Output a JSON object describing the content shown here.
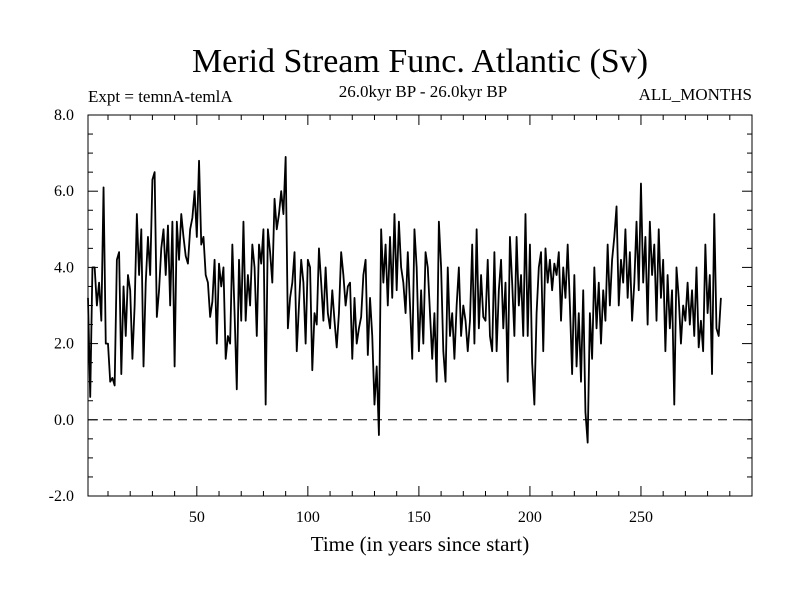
{
  "chart_data": {
    "type": "line",
    "title": "Merid Stream Func. Atlantic (Sv)",
    "subtitle_left": "Expt = temnA-temlA",
    "subtitle_center": "26.0kyr BP - 26.0kyr BP",
    "subtitle_right": "ALL_MONTHS",
    "xlabel": "Time (in years since start)",
    "ylabel": "",
    "xlim": [
      1,
      300
    ],
    "ylim": [
      -2.0,
      8.0
    ],
    "xticks": [
      50,
      100,
      150,
      200,
      250
    ],
    "xtick_labels": [
      "50",
      "100",
      "150",
      "200",
      "250"
    ],
    "yticks": [
      -2,
      0,
      2,
      4,
      6,
      8
    ],
    "ytick_labels": [
      "-2.0",
      "0.0",
      "2.0",
      "4.0",
      "6.0",
      "8.0"
    ],
    "reference_line": {
      "y": 0.0,
      "style": "dashed"
    },
    "line_color": "#000000",
    "series": [
      {
        "name": "Merid Stream Func.",
        "x_start": 1,
        "x_step": 1,
        "values": [
          3.2,
          0.6,
          4.0,
          4.0,
          3.0,
          3.6,
          2.6,
          6.1,
          2.0,
          2.0,
          1.0,
          1.1,
          0.9,
          4.2,
          4.4,
          1.2,
          3.5,
          2.2,
          3.8,
          3.4,
          1.6,
          3.0,
          5.4,
          3.8,
          5.0,
          1.4,
          3.6,
          4.8,
          3.8,
          6.3,
          6.5,
          2.7,
          3.4,
          4.5,
          5.0,
          3.8,
          5.1,
          3.0,
          5.2,
          1.4,
          5.2,
          4.2,
          5.4,
          4.8,
          4.3,
          4.1,
          5.0,
          5.3,
          6.0,
          4.8,
          6.8,
          4.6,
          4.8,
          3.8,
          3.6,
          2.7,
          3.1,
          4.2,
          2.0,
          4.1,
          3.5,
          4.0,
          1.6,
          2.2,
          2.0,
          4.6,
          2.8,
          0.8,
          4.2,
          2.6,
          5.2,
          2.6,
          3.8,
          3.0,
          4.6,
          4.0,
          2.2,
          4.6,
          4.1,
          5.0,
          0.4,
          5.0,
          4.4,
          3.6,
          5.8,
          5.0,
          5.4,
          6.0,
          5.4,
          6.9,
          2.4,
          3.2,
          3.6,
          4.4,
          1.8,
          3.0,
          4.2,
          3.6,
          2.0,
          4.2,
          4.0,
          1.3,
          2.8,
          2.5,
          4.5,
          3.6,
          2.6,
          4.0,
          2.8,
          2.4,
          3.4,
          2.6,
          1.9,
          2.8,
          4.4,
          3.8,
          3.0,
          3.5,
          3.6,
          1.6,
          3.2,
          2.0,
          2.4,
          2.7,
          3.8,
          4.2,
          1.7,
          3.2,
          2.2,
          0.4,
          1.4,
          -0.4,
          5.0,
          3.6,
          4.6,
          3.0,
          4.8,
          3.2,
          5.4,
          3.4,
          5.2,
          4.0,
          3.6,
          2.8,
          4.4,
          3.0,
          1.6,
          5.0,
          4.0,
          1.8,
          3.4,
          2.0,
          4.4,
          4.0,
          2.8,
          1.6,
          2.8,
          1.0,
          5.2,
          4.0,
          1.8,
          1.0,
          4.0,
          2.2,
          2.8,
          1.6,
          3.0,
          4.0,
          2.2,
          3.0,
          2.6,
          1.8,
          2.6,
          4.6,
          2.0,
          5.0,
          2.4,
          3.8,
          2.7,
          2.6,
          4.2,
          2.2,
          1.8,
          4.4,
          1.8,
          3.4,
          4.2,
          2.4,
          3.6,
          1.0,
          4.8,
          3.6,
          2.2,
          4.8,
          3.0,
          3.8,
          2.2,
          5.4,
          2.2,
          4.6,
          1.5,
          0.4,
          2.8,
          4.0,
          4.4,
          1.8,
          4.5,
          3.6,
          4.2,
          3.4,
          4.1,
          3.8,
          4.4,
          2.6,
          4.0,
          3.2,
          4.6,
          3.0,
          1.2,
          3.8,
          1.4,
          2.8,
          1.0,
          3.4,
          0.2,
          -0.6,
          2.8,
          1.6,
          4.0,
          2.4,
          3.6,
          2.0,
          3.4,
          2.6,
          4.6,
          3.0,
          4.2,
          4.8,
          5.6,
          3.0,
          4.2,
          3.6,
          5.0,
          3.2,
          4.4,
          2.6,
          3.6,
          5.2,
          3.4,
          6.2,
          3.6,
          4.8,
          2.5,
          5.2,
          3.8,
          4.6,
          2.6,
          5.0,
          3.2,
          4.2,
          1.8,
          3.8,
          2.4,
          3.4,
          0.4,
          4.0,
          3.2,
          2.0,
          3.0,
          2.6,
          3.6,
          2.5,
          3.4,
          2.2,
          4.0,
          1.9,
          2.6,
          1.8,
          4.6,
          2.8,
          3.8,
          1.2,
          5.4,
          2.4,
          2.2,
          3.2
        ]
      }
    ]
  }
}
